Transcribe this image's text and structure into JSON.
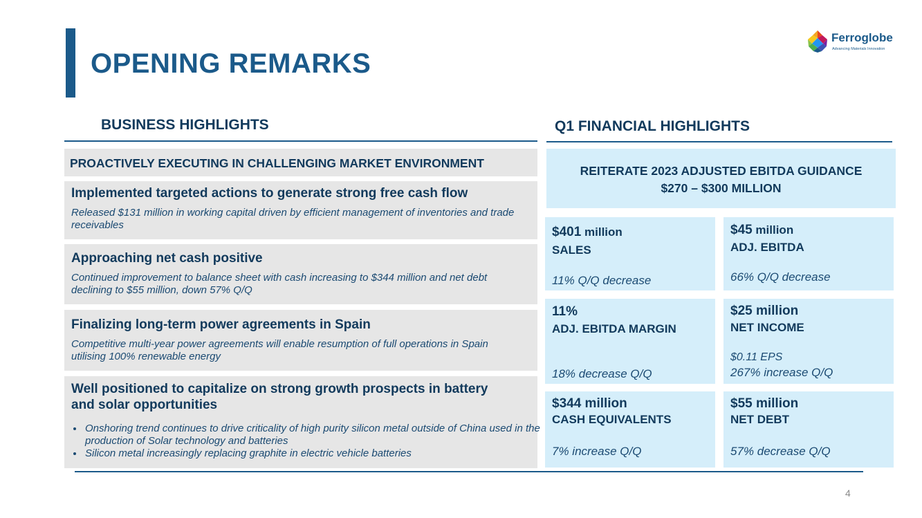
{
  "title": "OPENING REMARKS",
  "logo": {
    "name": "Ferroglobe",
    "tagline": "Advancing Materials Innovation"
  },
  "business": {
    "heading": "BUSINESS HIGHLIGHTS",
    "banner": "PROACTIVELY EXECUTING IN CHALLENGING MARKET ENVIRONMENT",
    "items": [
      {
        "title": "Implemented targeted actions to generate strong free cash flow",
        "body": "Released  $131 million in working capital driven by efficient management of inventories and trade receivables"
      },
      {
        "title": "Approaching net cash positive",
        "body": "Continued improvement to balance sheet with cash increasing to $344 million and net debt declining to $55 million, down 57% Q/Q"
      },
      {
        "title": "Finalizing long-term power agreements in Spain",
        "body": "Competitive multi-year power agreements will enable resumption of full operations in Spain utilising 100% renewable energy"
      },
      {
        "title": "Well positioned to capitalize on strong growth prospects in battery and solar opportunities",
        "bullets": [
          "Onshoring trend continues to drive criticality of high purity silicon metal outside of China used in the production of Solar technology and batteries",
          "Silicon metal increasingly replacing graphite in electric vehicle batteries"
        ]
      }
    ]
  },
  "financial": {
    "heading": "Q1 FINANCIAL HIGHLIGHTS",
    "guidance": {
      "line1": "REITERATE 2023 ADJUSTED EBITDA GUIDANCE",
      "line2": "$270 – $300 MILLION"
    },
    "cards": [
      {
        "value": "$401",
        "unit": " million",
        "label": "SALES",
        "note": "11% Q/Q decrease"
      },
      {
        "value": "$45",
        "unit": " million",
        "label": "ADJ. EBITDA",
        "note": "66% Q/Q decrease"
      },
      {
        "value": "11%",
        "unit": "",
        "label": "ADJ. EBITDA MARGIN",
        "note": "18% decrease Q/Q"
      },
      {
        "value": "$25 million",
        "unit": "",
        "label": "NET INCOME",
        "note": "$0.11 EPS",
        "note2": "267% increase Q/Q"
      },
      {
        "value": "$344 million",
        "unit": "",
        "label": "CASH EQUIVALENTS",
        "note": "7% increase Q/Q"
      },
      {
        "value": "$55 million",
        "unit": "",
        "label": "NET DEBT",
        "note": "57% decrease Q/Q"
      }
    ]
  },
  "page_number": "4",
  "colors": {
    "primary": "#1b5a8a",
    "dark_text": "#123a5c",
    "grey_box": "#e6e6e6",
    "blue_box": "#d5eefa"
  }
}
